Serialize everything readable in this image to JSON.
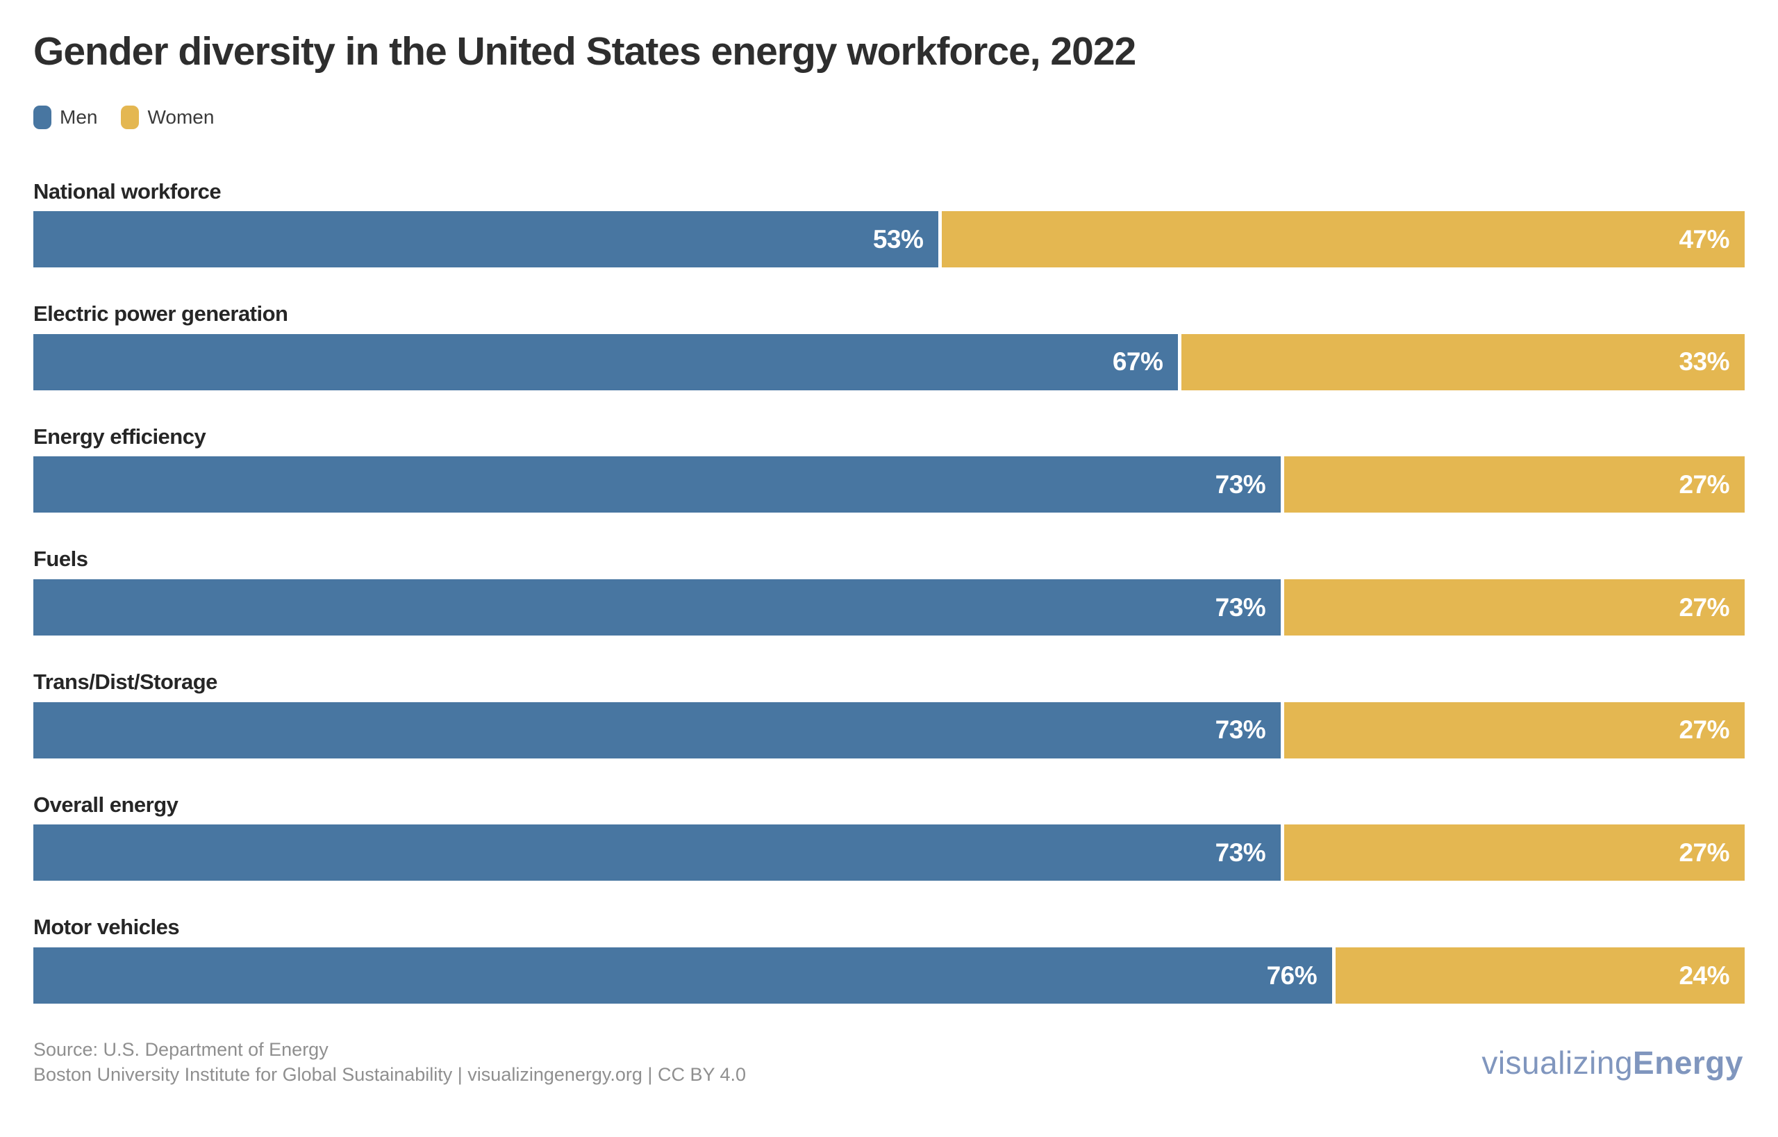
{
  "chart_data": {
    "type": "bar",
    "orientation": "horizontal-stacked",
    "title": "Gender diversity in the United States energy workforce, 2022",
    "categories": [
      "National workforce",
      "Electric power generation",
      "Energy efficiency",
      "Fuels",
      "Trans/Dist/Storage",
      "Overall energy",
      "Motor vehicles"
    ],
    "series": [
      {
        "name": "Men",
        "color": "#4876a1",
        "values": [
          53,
          67,
          73,
          73,
          73,
          73,
          76
        ]
      },
      {
        "name": "Women",
        "color": "#e4b751",
        "values": [
          47,
          33,
          27,
          27,
          27,
          27,
          24
        ]
      }
    ],
    "value_suffix": "%",
    "xlim": [
      0,
      100
    ],
    "grid": false,
    "legend_position": "top-left"
  },
  "legend": {
    "men_label": "Men",
    "women_label": "Women"
  },
  "footer": {
    "source_line1": "Source: U.S. Department of Energy",
    "source_line2": "Boston University Institute for Global Sustainability | visualizingenergy.org | CC BY 4.0",
    "logo_light": "visualizing",
    "logo_bold": "Energy"
  },
  "colors": {
    "men": "#4876a1",
    "women": "#e4b751",
    "title_text": "#2e2e2e",
    "category_text": "#262626",
    "value_text": "#ffffff",
    "footer_text": "#8f8f8f",
    "logo_text": "#8096be",
    "background": "#ffffff"
  }
}
